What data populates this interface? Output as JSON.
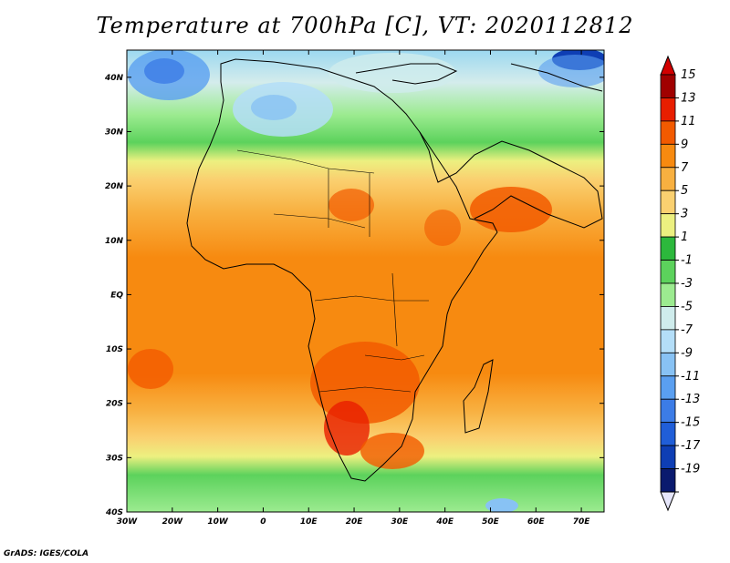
{
  "title": "Temperature at 700hPa [C], VT: 2020112812",
  "footer": "GrADS: IGES/COLA",
  "map": {
    "lon_ticks": [
      "30W",
      "20W",
      "10W",
      "0",
      "10E",
      "20E",
      "30E",
      "40E",
      "50E",
      "60E",
      "70E"
    ],
    "lat_ticks": [
      "40N",
      "30N",
      "20N",
      "10N",
      "EQ",
      "10S",
      "20S",
      "30S",
      "40S"
    ],
    "lon_range": [
      -30,
      75
    ],
    "lat_range": [
      -40,
      45
    ]
  },
  "colorbar": {
    "labels": [
      "15",
      "13",
      "11",
      "9",
      "7",
      "5",
      "3",
      "1",
      "-1",
      "-3",
      "-5",
      "-7",
      "-9",
      "-11",
      "-13",
      "-15",
      "-17",
      "-19"
    ],
    "colors": [
      "#a00000",
      "#e81e00",
      "#f25a00",
      "#f78a10",
      "#f8b040",
      "#fad070",
      "#ecf080",
      "#2cb83c",
      "#5cd25c",
      "#9ceb90",
      "#cfecec",
      "#b4def8",
      "#88c2f4",
      "#5a9ff0",
      "#3c7ce6",
      "#205ed8",
      "#0e3eb4",
      "#0a1a6e"
    ],
    "top_color": "#d20000",
    "bottom_color": "#e6e6fa"
  }
}
